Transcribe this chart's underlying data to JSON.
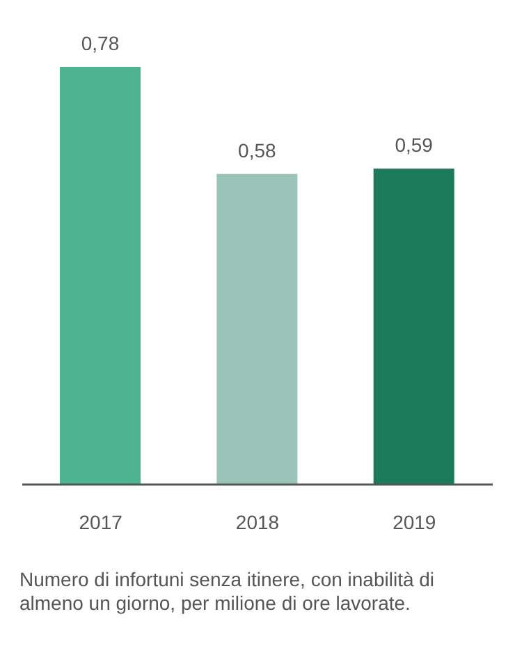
{
  "chart_data": {
    "type": "bar",
    "categories": [
      "2017",
      "2018",
      "2019"
    ],
    "values": [
      0.78,
      0.58,
      0.59
    ],
    "colors": [
      "#4db391",
      "#9bc4b8",
      "#1a7a5a"
    ],
    "value_labels": [
      "0,78",
      "0,58",
      "0,59"
    ],
    "annotations": [
      "Numero di infortuni senza itinere, con inabilità di almeno un giorno, per milione di ore lavorate."
    ]
  }
}
